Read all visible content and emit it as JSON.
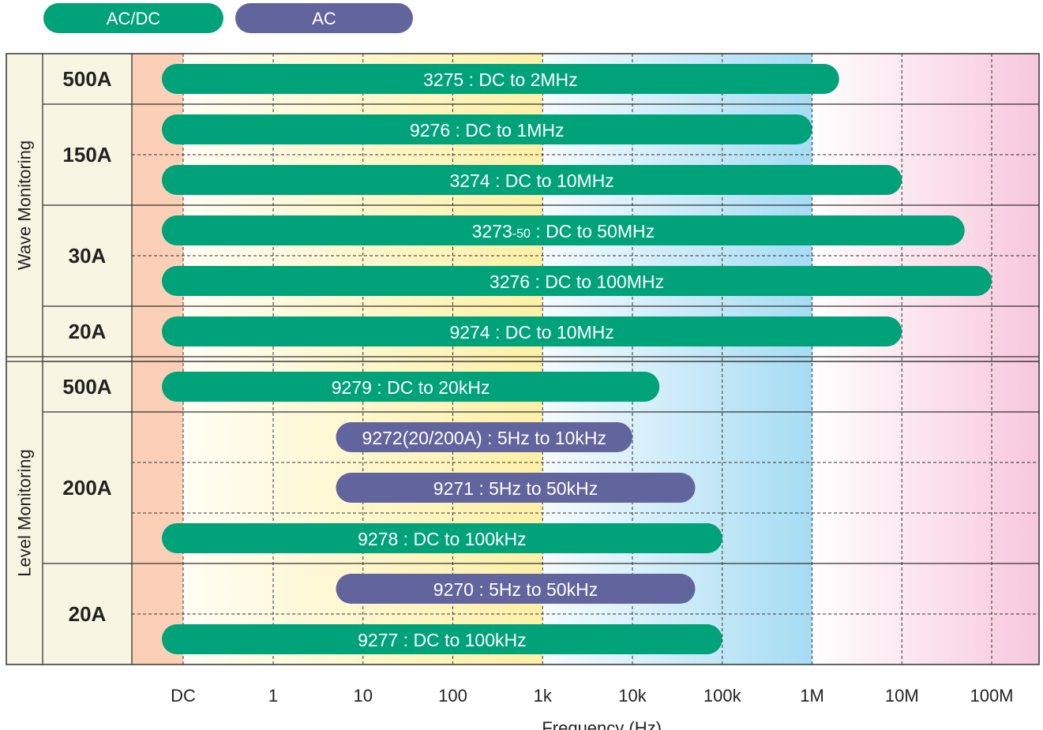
{
  "chart_data": {
    "type": "bar",
    "orientation": "horizontal",
    "xlabel": "Frequency (Hz)",
    "x_scale": "log",
    "x_ticks": [
      "DC",
      "1",
      "10",
      "100",
      "1k",
      "10k",
      "100k",
      "1M",
      "10M",
      "100M"
    ],
    "grid": true,
    "legend_position": "top-left",
    "legend": [
      {
        "label": "AC/DC",
        "color": "#00a27a"
      },
      {
        "label": "AC",
        "color": "#62649e"
      }
    ],
    "groups": [
      {
        "label": "Wave Monitoring",
        "ranges": [
          {
            "label": "500A",
            "bars": [
              {
                "text": "3275 : DC to 2MHz",
                "type": "AC/DC",
                "start": "DC",
                "end_hz": 2000000
              }
            ]
          },
          {
            "label": "150A",
            "bars": [
              {
                "text": "9276 : DC to 1MHz",
                "type": "AC/DC",
                "start": "DC",
                "end_hz": 1000000
              },
              {
                "text": "3274 : DC to 10MHz",
                "type": "AC/DC",
                "start": "DC",
                "end_hz": 10000000
              }
            ]
          },
          {
            "label": "30A",
            "bars": [
              {
                "text_main": "3273",
                "text_small": "-50",
                "text_rest": " : DC to 50MHz",
                "type": "AC/DC",
                "start": "DC",
                "end_hz": 50000000
              },
              {
                "text": "3276 : DC to 100MHz",
                "type": "AC/DC",
                "start": "DC",
                "end_hz": 100000000
              }
            ]
          },
          {
            "label": "20A",
            "bars": [
              {
                "text": "9274 : DC to 10MHz",
                "type": "AC/DC",
                "start": "DC",
                "end_hz": 10000000
              }
            ]
          }
        ]
      },
      {
        "label": "Level Monitoring",
        "ranges": [
          {
            "label": "500A",
            "bars": [
              {
                "text": "9279 : DC to 20kHz",
                "type": "AC/DC",
                "start": "DC",
                "end_hz": 20000
              }
            ]
          },
          {
            "label": "200A",
            "bars": [
              {
                "text": "9272(20/200A) : 5Hz to 10kHz",
                "type": "AC",
                "start_hz": 5,
                "end_hz": 10000
              },
              {
                "text": "9271 : 5Hz to 50kHz",
                "type": "AC",
                "start_hz": 5,
                "end_hz": 50000
              },
              {
                "text": "9278 : DC to 100kHz",
                "type": "AC/DC",
                "start": "DC",
                "end_hz": 100000
              }
            ]
          },
          {
            "label": "20A",
            "bars": [
              {
                "text": "9270 : 5Hz to 50kHz",
                "type": "AC",
                "start_hz": 5,
                "end_hz": 50000
              },
              {
                "text": "9277 : DC to 100kHz",
                "type": "AC/DC",
                "start": "DC",
                "end_hz": 100000
              }
            ]
          }
        ]
      }
    ]
  }
}
